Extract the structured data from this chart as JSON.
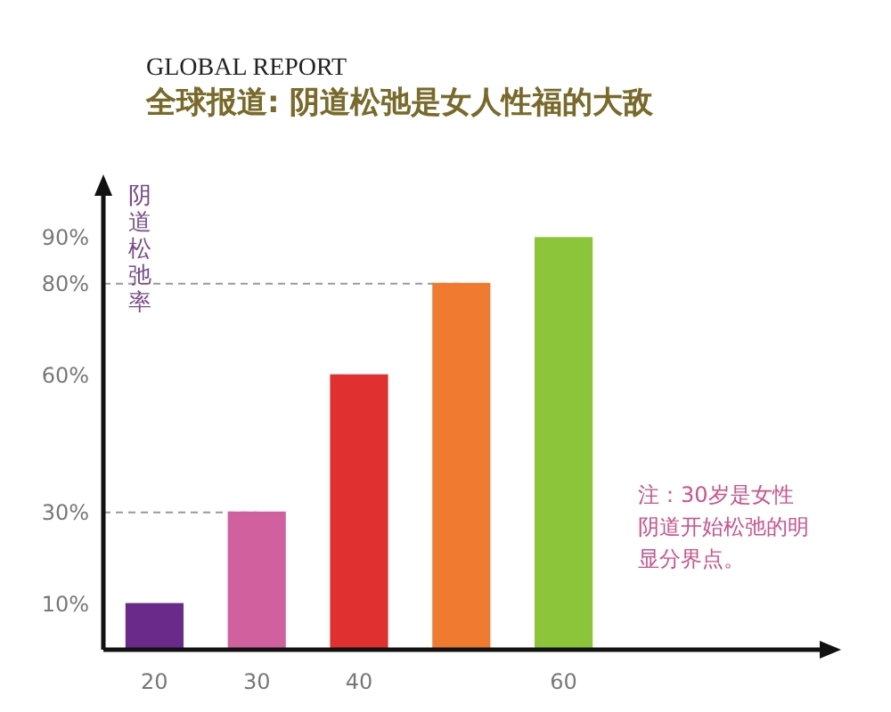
{
  "chart_data": {
    "type": "bar",
    "title": "全球报道: 阴道松弛是女人性福的大敌",
    "subtitle": "GLOBAL REPORT",
    "ylabel": "阴道松弛率",
    "categories": [
      "20",
      "30",
      "40",
      null,
      "60"
    ],
    "values": [
      10,
      30,
      60,
      80,
      90
    ],
    "colors": [
      "#6a2a8a",
      "#d0609e",
      "#e03030",
      "#f07a30",
      "#8cc43a"
    ],
    "ylim": [
      0,
      100
    ],
    "yticks": [
      {
        "value": 10,
        "label": "10%"
      },
      {
        "value": 30,
        "label": "30%"
      },
      {
        "value": 60,
        "label": "60%"
      },
      {
        "value": 80,
        "label": "80%"
      },
      {
        "value": 90,
        "label": "90%"
      }
    ],
    "ref_lines": [
      {
        "axis": "y",
        "value": 30,
        "color": "#999999",
        "line_style": "dashed"
      },
      {
        "axis": "y",
        "value": 80,
        "color": "#999999",
        "line_style": "dashed"
      }
    ],
    "annotations": [
      "注：30岁是女性阴道开始松弛的明显分界点。"
    ]
  }
}
